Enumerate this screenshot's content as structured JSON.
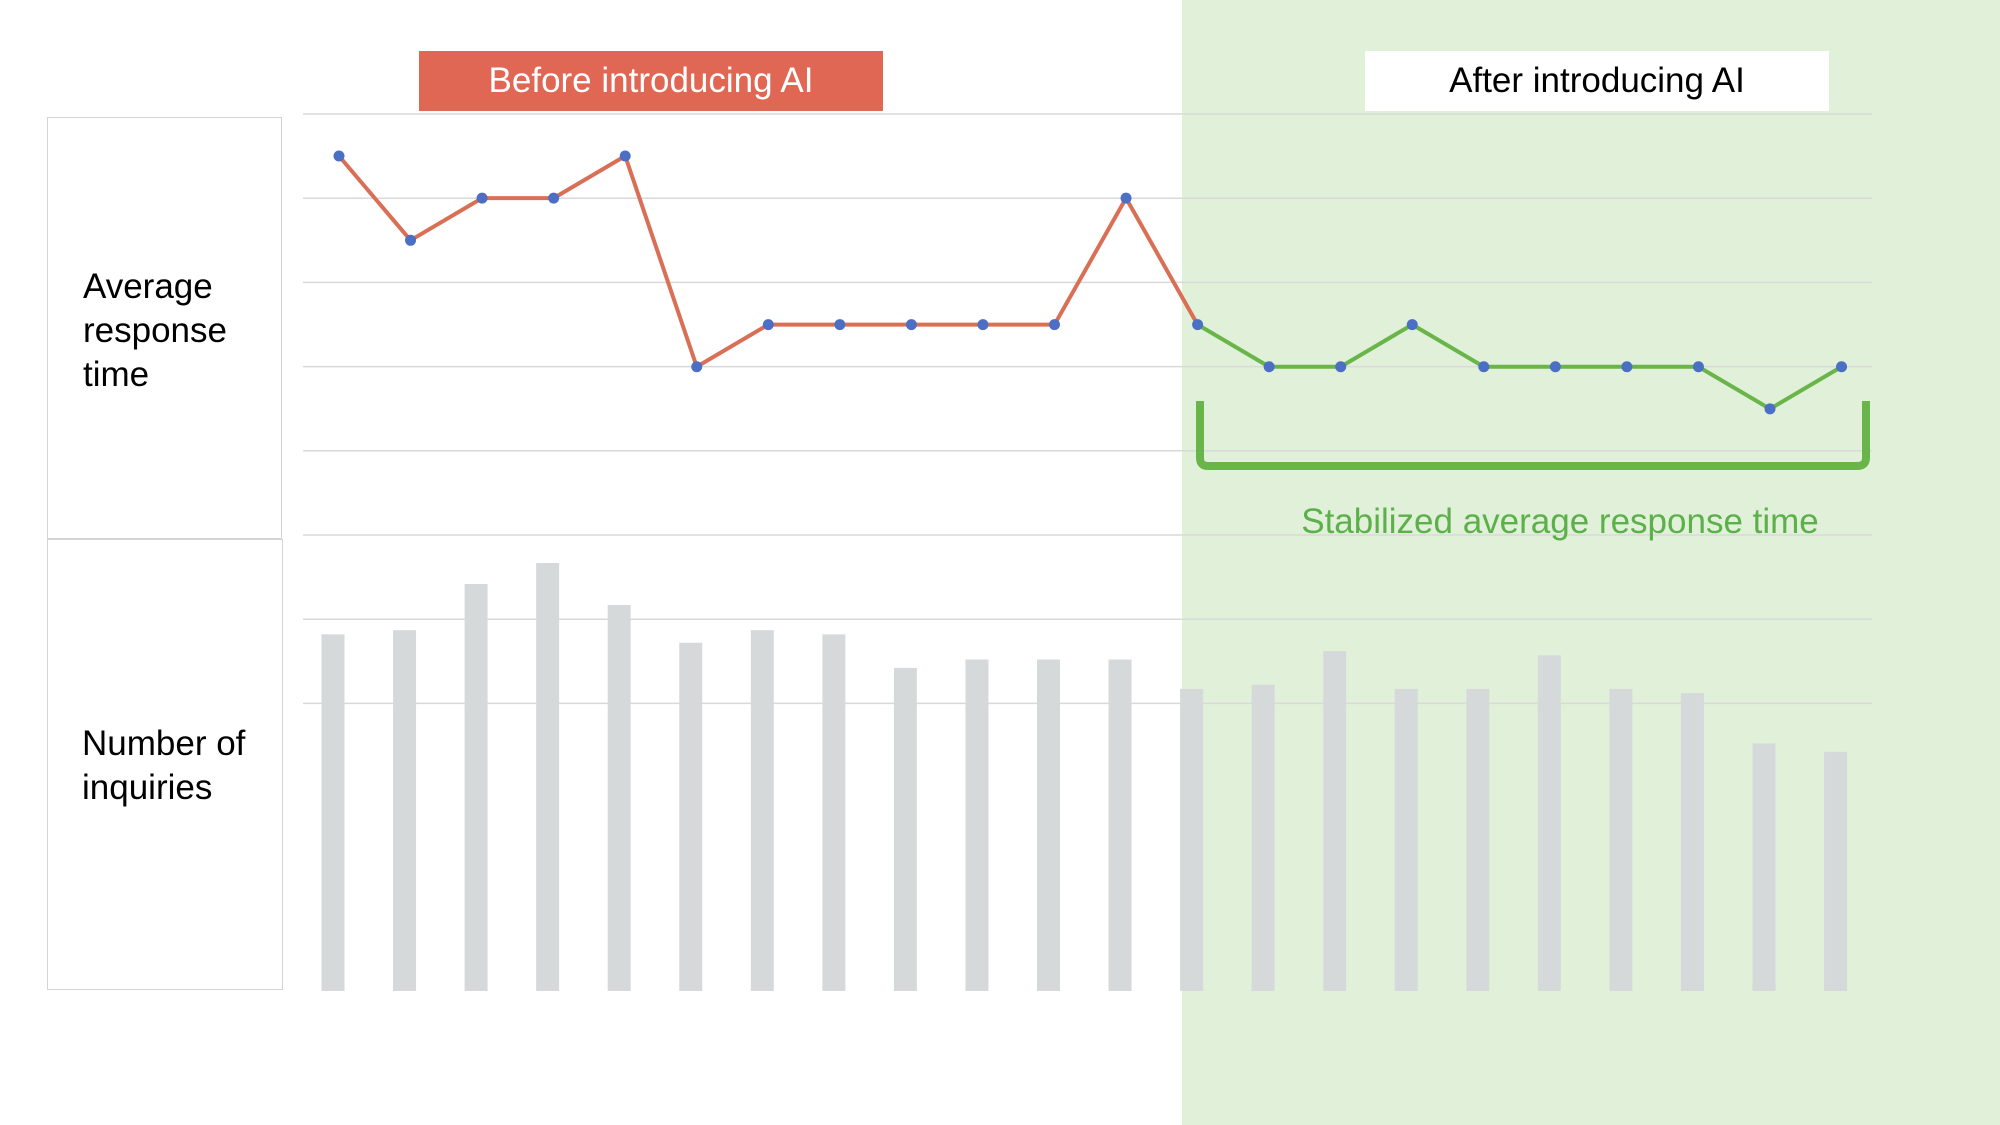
{
  "colors": {
    "after_region": "#e1f0d9",
    "before_banner": "#e06753",
    "before_line": "#d96f55",
    "after_line": "#6ab54a",
    "point": "#4a6fc4",
    "bar": "#d6d9da",
    "grid": "#d9d9d9",
    "annotation": "#5cb04a"
  },
  "labels": {
    "before_banner": "Before introducing AI",
    "after_banner": "After introducing AI",
    "row_response": "Average\nresponse\ntime",
    "row_inquiries": "Number of\ninquiries",
    "annotation": "Stabilized average response time"
  },
  "chart_data": {
    "type": "line+bar",
    "x": [
      1,
      2,
      3,
      4,
      5,
      6,
      7,
      8,
      9,
      10,
      11,
      12,
      13,
      14,
      15,
      16,
      17,
      18,
      19,
      20,
      21,
      22
    ],
    "intervention_after_index": 12,
    "series": [
      {
        "role": "line",
        "values": [
          10,
          8,
          9,
          9,
          10,
          5,
          6,
          6,
          6,
          6,
          6,
          9,
          6,
          5,
          5,
          6,
          5,
          5,
          5,
          5,
          4,
          5
        ],
        "ylim": [
          0,
          11
        ]
      },
      {
        "role": "bar",
        "values": [
          85,
          86,
          97,
          102,
          92,
          83,
          86,
          85,
          77,
          79,
          79,
          79,
          72,
          73,
          81,
          72,
          72,
          80,
          72,
          71,
          59,
          57
        ],
        "ylim": [
          0,
          102
        ]
      }
    ],
    "grid": true
  }
}
